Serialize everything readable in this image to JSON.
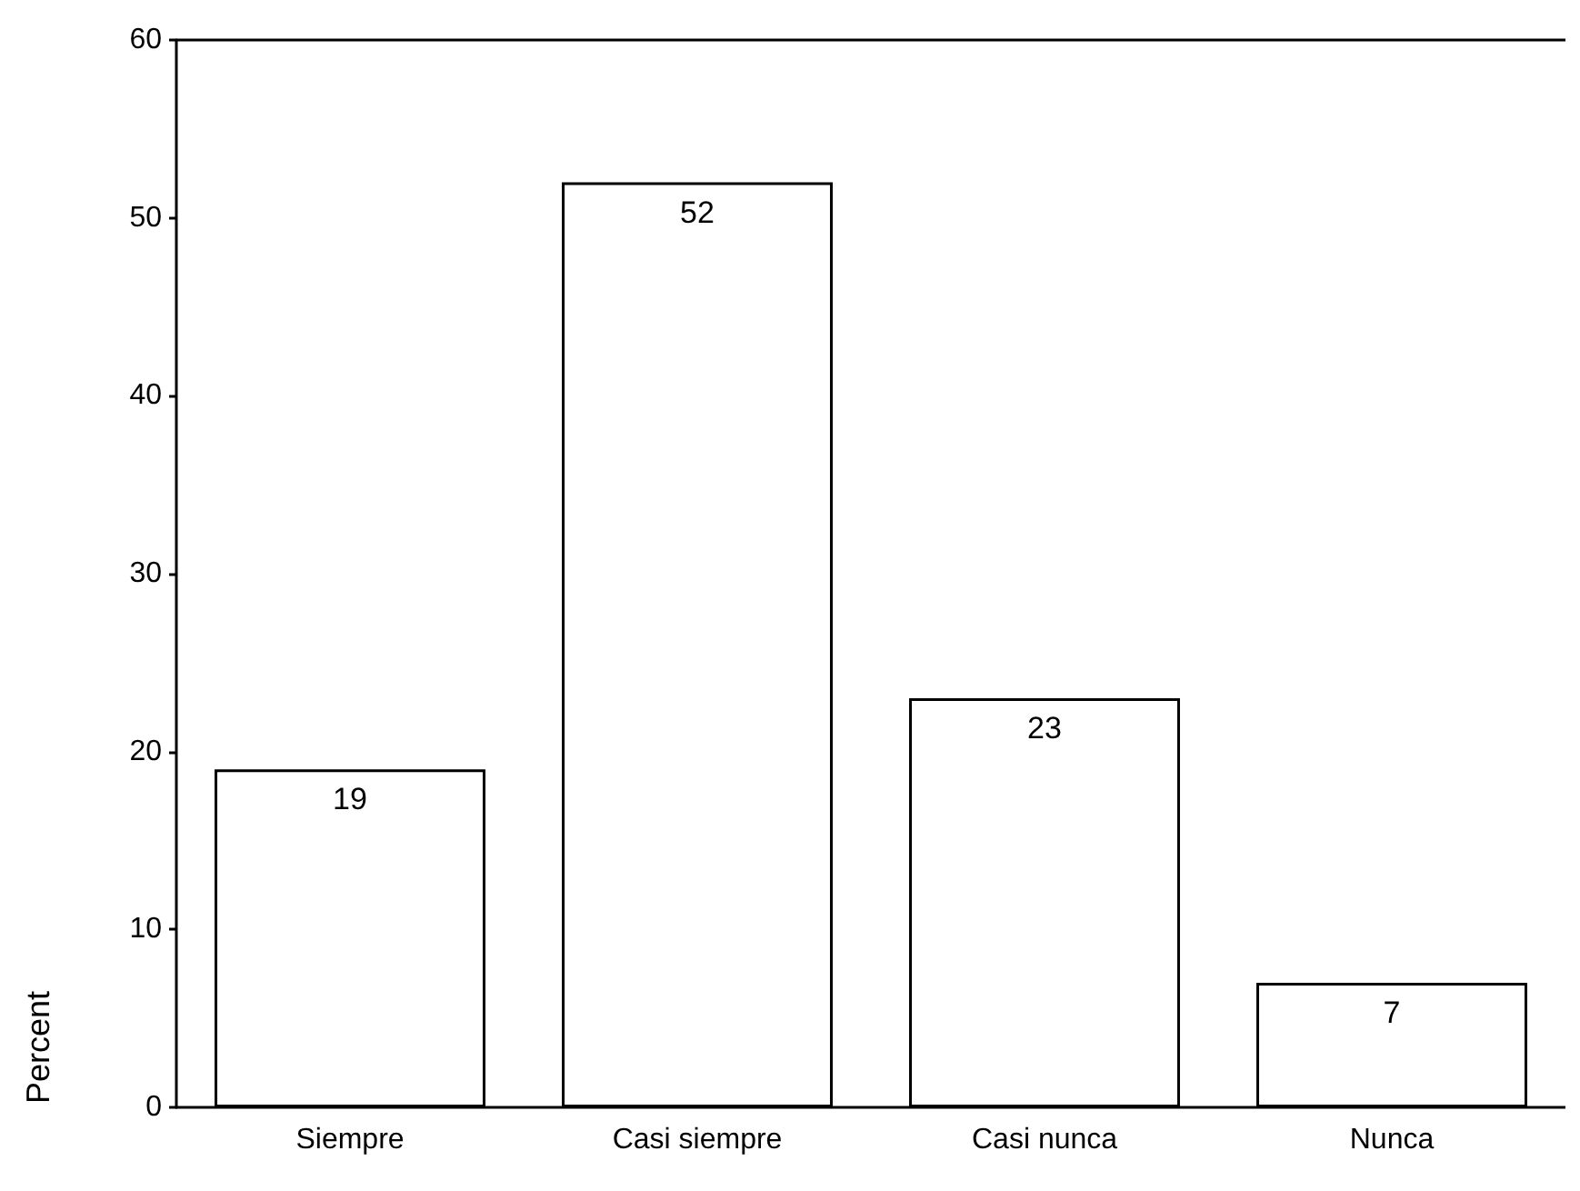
{
  "chart_data": {
    "type": "bar",
    "ylabel": "Percent",
    "categories": [
      "Siempre",
      "Casi siempre",
      "Casi nunca",
      "Nunca"
    ],
    "values": [
      19,
      52,
      23,
      7
    ],
    "color": "#ffffff",
    "ylim": [
      0,
      60
    ],
    "yticks": [
      0,
      10,
      20,
      30,
      40,
      50,
      60
    ],
    "data_labels": true,
    "grid": false
  }
}
